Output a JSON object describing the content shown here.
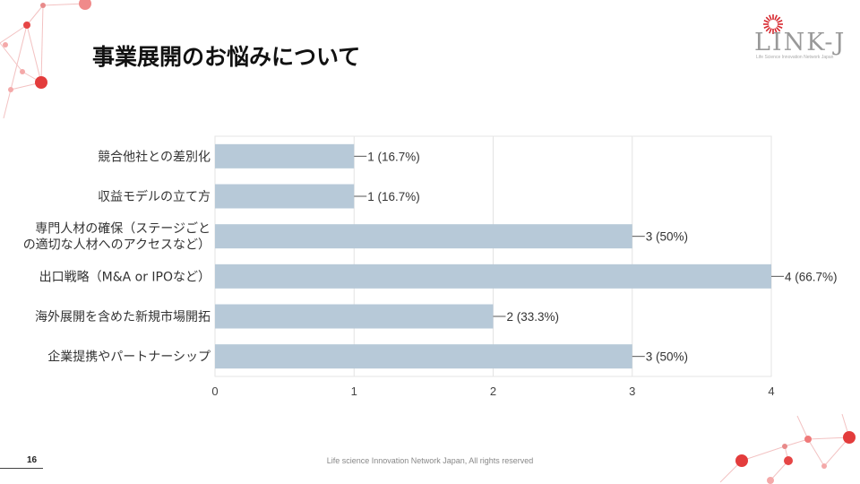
{
  "slide": {
    "title": "事業展開のお悩みについて",
    "page_number": "16",
    "footer": "Life science Innovation Network Japan, All rights reserved"
  },
  "logo": {
    "text": "LINK-J",
    "subtitle": "Life Science Innovation Network Japan",
    "icon": "sunburst-icon",
    "accent_color": "#d7282f"
  },
  "chart_data": {
    "type": "bar",
    "orientation": "horizontal",
    "categories": [
      [
        "競合他社との差別化"
      ],
      [
        "収益モデルの立て方"
      ],
      [
        "専門人材の確保（ステージごと",
        "の適切な人材へのアクセスなど）"
      ],
      [
        "出口戦略（M&A or IPOなど）"
      ],
      [
        "海外展開を含めた新規市場開拓"
      ],
      [
        "企業提携やパートナーシップ"
      ]
    ],
    "values": [
      1,
      1,
      3,
      4,
      2,
      3
    ],
    "value_labels": [
      "1 (16.7%)",
      "1 (16.7%)",
      "3 (50%)",
      "4 (66.7%)",
      "2 (33.3%)",
      "3 (50%)"
    ],
    "xlim": [
      0,
      4
    ],
    "x_ticks": [
      0,
      1,
      2,
      3,
      4
    ],
    "grid": true,
    "bar_color": "#b7c9d8",
    "xlabel": "",
    "ylabel": ""
  }
}
